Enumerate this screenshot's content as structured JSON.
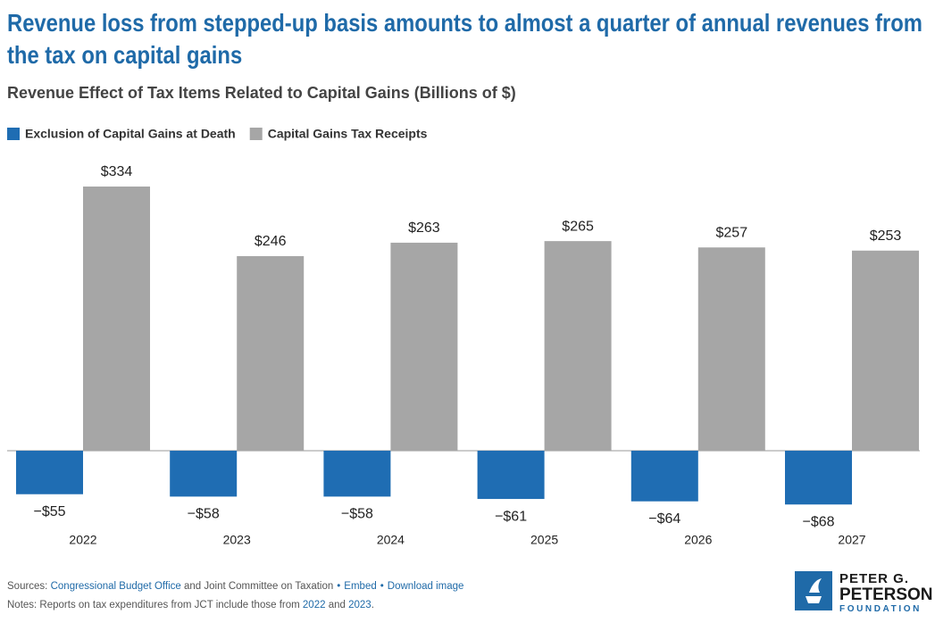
{
  "chart_data": {
    "type": "bar",
    "title": "Revenue loss from stepped-up basis amounts to almost a quarter of annual revenues from the tax on capital gains",
    "subtitle": "Revenue Effect of Tax Items Related to Capital Gains (Billions of $)",
    "categories": [
      "2022",
      "2023",
      "2024",
      "2025",
      "2026",
      "2027"
    ],
    "series": [
      {
        "name": "Exclusion of Capital Gains at Death",
        "color": "#1f6db3",
        "values": [
          -55,
          -58,
          -58,
          -61,
          -64,
          -68
        ],
        "value_labels": [
          "−$55",
          "−$58",
          "−$58",
          "−$61",
          "−$64",
          "−$68"
        ]
      },
      {
        "name": "Capital Gains Tax Receipts",
        "color": "#a6a6a6",
        "values": [
          334,
          246,
          263,
          265,
          257,
          253
        ],
        "value_labels": [
          "$334",
          "$246",
          "$263",
          "$265",
          "$257",
          "$253"
        ]
      }
    ],
    "legend": "top-left",
    "grid": false
  },
  "footer": {
    "sources_prefix": "Sources:",
    "source_link": "Congressional Budget Office",
    "source_rest": "and Joint Committee on Taxation",
    "links": [
      "Embed",
      "Download image"
    ],
    "notes_prefix": "Notes: Reports on tax expenditures from JCT include those from",
    "notes_links": [
      "2022",
      "2023"
    ],
    "notes_and": "and",
    "notes_end": "."
  },
  "logo": {
    "lines": [
      "PETER G.",
      "PETERSON",
      "FOUNDATION"
    ]
  }
}
